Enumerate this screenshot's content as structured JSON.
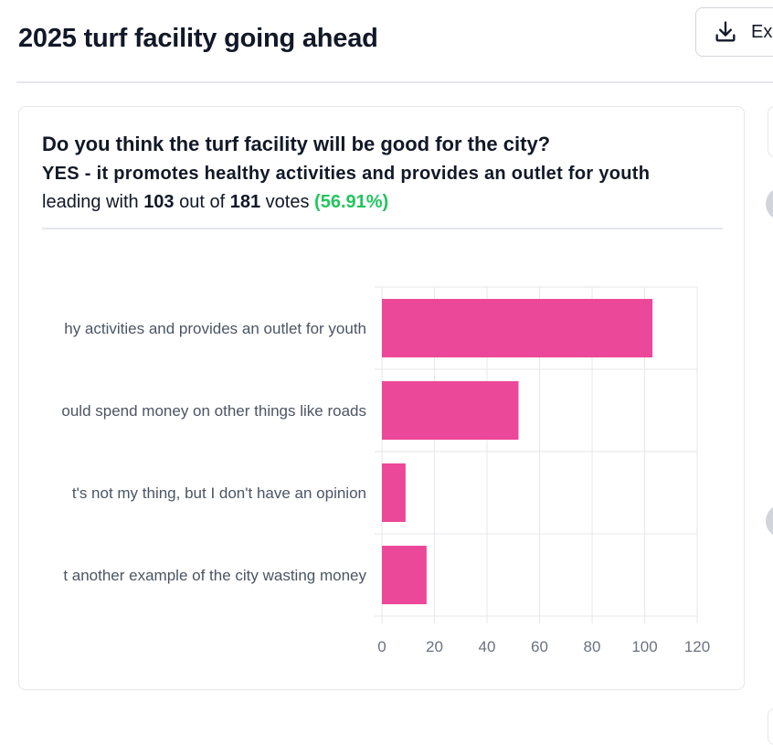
{
  "header": {
    "title": "2025 turf facility going ahead",
    "export_label": "Export",
    "export_icon": "download-icon"
  },
  "poll": {
    "question": "Do you think the turf facility will be good for the city?",
    "leading_option": "YES - it promotes healthy activities and provides an outlet for youth",
    "leading_prefix": "leading with",
    "leading_votes": "103",
    "out_of_text": "out of",
    "total_votes": "181",
    "votes_word": "votes",
    "leading_percent": "(56.91%)"
  },
  "colors": {
    "bar": "#ec4899",
    "percent": "#22c55e",
    "grid": "#e5e7eb",
    "axis_text": "#6b7280"
  },
  "chart_data": {
    "type": "bar",
    "orientation": "horizontal",
    "categories": [
      "YES - it promotes healthy activities and provides an outlet for youth",
      "NO - the city should spend money on other things like roads",
      "NEUTRAL - it's not my thing, but I don't have an opinion",
      "NO - it's just another example of the city wasting money"
    ],
    "visible_category_labels": [
      "hy activities and provides an outlet for youth",
      "ould spend money on other things like roads",
      "t's not my thing, but I don't have an opinion",
      "t another example of the city wasting money"
    ],
    "values": [
      103,
      52,
      9,
      17
    ],
    "xlim": [
      0,
      120
    ],
    "xticks": [
      0,
      20,
      40,
      60,
      80,
      100,
      120
    ],
    "grid": true
  }
}
